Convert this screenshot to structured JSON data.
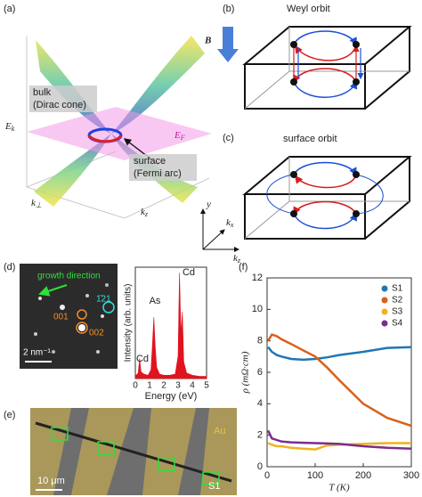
{
  "panel_labels": [
    "(a)",
    "(b)",
    "(c)",
    "(d)",
    "(e)",
    "(f)"
  ],
  "panel_a": {
    "bulk": [
      "bulk",
      "(Dirac cone)"
    ],
    "surface": [
      "surface",
      "(Fermi arc)"
    ],
    "fermi_level": {
      "symbol": "E",
      "subscript": "F"
    },
    "energy_axis": {
      "symbol": "E",
      "subscript": "k"
    },
    "k_perp": {
      "symbol": "k",
      "subscript": "⊥"
    },
    "k_z": {
      "symbol": "k",
      "subscript": "z"
    }
  },
  "panel_b": {
    "title": "Weyl orbit",
    "field": "B"
  },
  "panel_c": {
    "title": "surface orbit",
    "axis_y": "y",
    "axis_kx": {
      "symbol": "k",
      "subscript": "x"
    },
    "axis_kz": {
      "symbol": "k",
      "subscript": "z"
    }
  },
  "panel_d": {
    "growth": "growth direction",
    "spot_cyan": "1̄21",
    "spot_001": "001",
    "spot_002": "002",
    "scale": "2 nm⁻¹"
  },
  "panel_e": {
    "metal": "Au",
    "scale": "10 μm",
    "sample": "S1"
  },
  "chart_data": [
    {
      "type": "area",
      "xlabel": "Energy (eV)",
      "ylabel": "Intensity (arb. units)",
      "annotations": [
        "Cd",
        "As",
        "Cd"
      ],
      "color": "#e0141e",
      "xlim": [
        0,
        5
      ],
      "xticks": [
        0,
        1,
        2,
        3,
        4,
        5
      ],
      "ylim": [
        0,
        100
      ],
      "x": [
        0,
        0.2,
        0.3,
        0.4,
        0.6,
        0.9,
        1.1,
        1.2,
        1.3,
        1.4,
        1.5,
        1.7,
        2.0,
        2.4,
        2.8,
        3.0,
        3.1,
        3.2,
        3.3,
        3.4,
        3.6,
        4.0,
        4.5,
        5.0
      ],
      "values": [
        2,
        5,
        18,
        6,
        4,
        3,
        8,
        30,
        55,
        28,
        10,
        4,
        3,
        3,
        4,
        20,
        95,
        40,
        60,
        15,
        5,
        3,
        2,
        2
      ]
    },
    {
      "type": "line",
      "xlabel": "T (K)",
      "ylabel": "ρ (mΩ·cm)",
      "xlim": [
        0,
        300
      ],
      "xticks": [
        0,
        100,
        200,
        300
      ],
      "ylim": [
        0,
        12
      ],
      "yticks": [
        0,
        2,
        4,
        6,
        8,
        10,
        12
      ],
      "legend": "upper right",
      "x": [
        2,
        10,
        20,
        30,
        50,
        75,
        100,
        125,
        150,
        200,
        250,
        300
      ],
      "series": [
        {
          "name": "S1",
          "color": "#1f77b4",
          "values": [
            7.6,
            7.3,
            7.1,
            7.0,
            6.85,
            6.8,
            6.85,
            6.95,
            7.1,
            7.3,
            7.55,
            7.6
          ]
        },
        {
          "name": "S2",
          "color": "#d9601a",
          "values": [
            8.0,
            8.4,
            8.3,
            8.1,
            7.8,
            7.4,
            7.0,
            6.3,
            5.5,
            4.0,
            3.1,
            2.6
          ]
        },
        {
          "name": "S3",
          "color": "#efb21e",
          "values": [
            1.5,
            1.4,
            1.3,
            1.3,
            1.2,
            1.15,
            1.1,
            1.35,
            1.4,
            1.45,
            1.5,
            1.5
          ]
        },
        {
          "name": "S4",
          "color": "#7b2d8e",
          "values": [
            2.3,
            1.8,
            1.7,
            1.6,
            1.55,
            1.52,
            1.5,
            1.48,
            1.45,
            1.3,
            1.2,
            1.15
          ]
        }
      ]
    }
  ]
}
